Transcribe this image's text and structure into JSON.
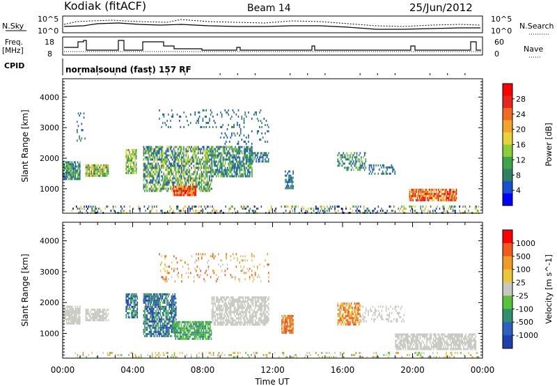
{
  "header": {
    "station": "Kodiak (fitACF)",
    "beam": "Beam 14",
    "date": "25/Jun/2012"
  },
  "top_panels": {
    "nsky_label": "N.Sky",
    "nsky_ticks": [
      "10^5",
      "10^0"
    ],
    "nsearch_label": "N.Search",
    "nsearch_ticks": [
      "10^5",
      "10^0"
    ],
    "freq_label_1": "Freq.",
    "freq_label_2": "[MHz]",
    "freq_ticks": [
      "18",
      "8"
    ],
    "nave_label": "Nave",
    "nave_ticks": [
      "60",
      "0"
    ],
    "cpid_label": "CPID",
    "cpid_text": "normalsound (fast) 157 RF"
  },
  "chart_data": [
    {
      "type": "heatmap",
      "name": "power",
      "ylabel": "Slant Range [km]",
      "yticks": [
        "4000",
        "3000",
        "2000",
        "1000"
      ],
      "ylim": [
        200,
        4600
      ],
      "colorbar_label": "Power [dB]",
      "colorbar_ticks": [
        "28",
        "24",
        "20",
        "16",
        "12",
        "8",
        "4"
      ],
      "colors": [
        "#0000ff",
        "#1a4fd0",
        "#2f7f62",
        "#3fa34a",
        "#8ccd3a",
        "#e8d23a",
        "#f2a42e",
        "#ef6a23",
        "#e6261f",
        "#ff0000"
      ]
    },
    {
      "type": "heatmap",
      "name": "velocity",
      "ylabel": "Slant Range [km]",
      "yticks": [
        "4000",
        "3000",
        "2000",
        "1000"
      ],
      "ylim": [
        200,
        4600
      ],
      "colorbar_label": "Velocity [m s^-1]",
      "colorbar_ticks": [
        "1000",
        "500",
        "100",
        "25",
        "-25",
        "-100",
        "-500",
        "-1000"
      ],
      "colors": [
        "#1f3fae",
        "#2f5fc0",
        "#2f8f6f",
        "#57c23a",
        "#c8c8c2",
        "#e8c83a",
        "#f09a2a",
        "#ef5a1e",
        "#ff0000"
      ]
    }
  ],
  "xaxis": {
    "ticks": [
      "00:00",
      "04:00",
      "08:00",
      "12:00",
      "16:00",
      "20:00",
      "00:00"
    ],
    "label": "Time UT"
  }
}
